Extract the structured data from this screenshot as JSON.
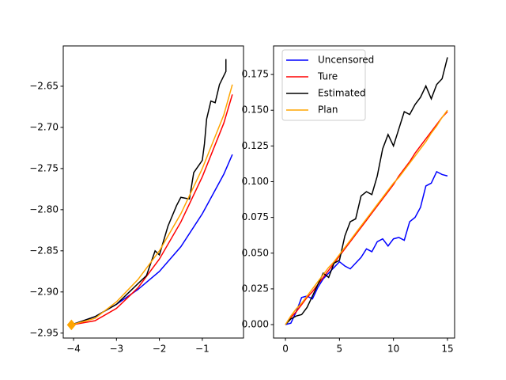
{
  "chart_data": [
    {
      "type": "line",
      "xlim": [
        -4.24,
        -0.04
      ],
      "ylim": [
        -2.956,
        -2.601
      ],
      "xticks": [
        {
          "value": -4,
          "label": "−4"
        },
        {
          "value": -3,
          "label": "−3"
        },
        {
          "value": -2,
          "label": "−2"
        },
        {
          "value": -1,
          "label": "−1"
        }
      ],
      "yticks": [
        {
          "value": -2.95,
          "label": "−2.95"
        },
        {
          "value": -2.9,
          "label": "−2.90"
        },
        {
          "value": -2.85,
          "label": "−2.85"
        },
        {
          "value": -2.8,
          "label": "−2.80"
        },
        {
          "value": -2.75,
          "label": "−2.75"
        },
        {
          "value": -2.7,
          "label": "−2.70"
        },
        {
          "value": -2.65,
          "label": "−2.65"
        }
      ],
      "series": [
        {
          "color": "blue",
          "x": [
            -4.05,
            -3.5,
            -3,
            -2.5,
            -2,
            -1.5,
            -1,
            -0.5,
            -0.3
          ],
          "values": [
            -2.94,
            -2.93,
            -2.915,
            -2.897,
            -2.875,
            -2.845,
            -2.805,
            -2.757,
            -2.733
          ]
        },
        {
          "color": "red",
          "x": [
            -4.05,
            -3.5,
            -3,
            -2.5,
            -2,
            -1.5,
            -1,
            -0.5,
            -0.3
          ],
          "values": [
            -2.94,
            -2.935,
            -2.92,
            -2.895,
            -2.86,
            -2.815,
            -2.76,
            -2.695,
            -2.66
          ]
        },
        {
          "color": "black",
          "x": [
            -4.05,
            -3.5,
            -3,
            -2.6,
            -2.3,
            -2.2,
            -2.1,
            -2.0,
            -1.8,
            -1.6,
            -1.5,
            -1.3,
            -1.2,
            -1.0,
            -0.95,
            -0.9,
            -0.8,
            -0.7,
            -0.6,
            -0.45,
            -0.45
          ],
          "values": [
            -2.94,
            -2.93,
            -2.915,
            -2.895,
            -2.88,
            -2.865,
            -2.85,
            -2.855,
            -2.82,
            -2.795,
            -2.785,
            -2.787,
            -2.755,
            -2.74,
            -2.72,
            -2.69,
            -2.668,
            -2.67,
            -2.648,
            -2.632,
            -2.617
          ]
        },
        {
          "color": "orange",
          "x": [
            -4.05,
            -3.5,
            -3,
            -2.5,
            -2,
            -1.5,
            -1,
            -0.5,
            -0.3
          ],
          "values": [
            -2.94,
            -2.932,
            -2.912,
            -2.885,
            -2.85,
            -2.805,
            -2.75,
            -2.685,
            -2.648
          ]
        }
      ],
      "marker": {
        "x": -4.05,
        "y": -2.94,
        "color": "orange"
      }
    },
    {
      "type": "line",
      "xlim": [
        -1.1,
        15.66
      ],
      "ylim": [
        -0.0094,
        0.195
      ],
      "xticks": [
        0,
        5,
        10,
        15
      ],
      "yticks": [
        {
          "value": 0,
          "label": "0.000"
        },
        0.025,
        {
          "value": 0.05,
          "label": "0.050"
        },
        0.075,
        {
          "value": 0.1,
          "label": "0.100"
        },
        0.125,
        {
          "value": 0.15,
          "label": "0.150"
        },
        0.175
      ],
      "legend": "upper left",
      "series": [
        {
          "name": "Uncensored",
          "color": "blue",
          "x": [
            0,
            0.5,
            1,
            1.5,
            2,
            2.5,
            3,
            3.5,
            4,
            4.5,
            5,
            5.5,
            6,
            6.5,
            7,
            7.5,
            8,
            8.5,
            9,
            9.5,
            10,
            10.5,
            11,
            11.5,
            12,
            12.5,
            13,
            13.5,
            14,
            14.5,
            15
          ],
          "values": [
            0,
            0.001,
            0.009,
            0.019,
            0.02,
            0.018,
            0.026,
            0.032,
            0.036,
            0.04,
            0.044,
            0.041,
            0.039,
            0.043,
            0.047,
            0.053,
            0.051,
            0.058,
            0.06,
            0.055,
            0.06,
            0.061,
            0.059,
            0.072,
            0.075,
            0.082,
            0.097,
            0.099,
            0.107,
            0.105,
            0.104
          ]
        },
        {
          "name": "Ture",
          "color": "red",
          "x": [
            0,
            0.5,
            1,
            1.5,
            2,
            2.5,
            3,
            3.5,
            4,
            4.5,
            5,
            5.5,
            6,
            6.5,
            7,
            7.5,
            8,
            8.5,
            9,
            9.5,
            10,
            10.5,
            11,
            11.5,
            12,
            12.5,
            13,
            13.5,
            14,
            14.5,
            15
          ],
          "values": [
            0,
            0.005,
            0.009,
            0.014,
            0.019,
            0.023,
            0.028,
            0.033,
            0.038,
            0.043,
            0.048,
            0.053,
            0.058,
            0.063,
            0.068,
            0.073,
            0.078,
            0.083,
            0.088,
            0.093,
            0.098,
            0.104,
            0.109,
            0.114,
            0.12,
            0.125,
            0.13,
            0.135,
            0.14,
            0.145,
            0.149
          ]
        },
        {
          "name": "Estimated",
          "color": "black",
          "x": [
            0,
            0.5,
            1,
            1.5,
            2,
            2.5,
            3,
            3.5,
            4,
            4.5,
            5,
            5.5,
            6,
            6.5,
            7,
            7.5,
            8,
            8.5,
            9,
            9.5,
            10,
            10.5,
            11,
            11.5,
            12,
            12.5,
            13,
            13.5,
            14,
            14.5,
            15
          ],
          "values": [
            0,
            0.004,
            0.006,
            0.007,
            0.012,
            0.02,
            0.028,
            0.036,
            0.033,
            0.043,
            0.045,
            0.062,
            0.072,
            0.074,
            0.09,
            0.093,
            0.091,
            0.104,
            0.123,
            0.133,
            0.125,
            0.137,
            0.149,
            0.147,
            0.154,
            0.159,
            0.167,
            0.158,
            0.168,
            0.172,
            0.187
          ]
        },
        {
          "name": "Plan",
          "color": "orange",
          "x": [
            0,
            0.5,
            1,
            1.5,
            2,
            2.5,
            3,
            3.5,
            4,
            4.5,
            5,
            5.5,
            6,
            6.5,
            7,
            7.5,
            8,
            8.5,
            9,
            9.5,
            10,
            10.5,
            11,
            11.5,
            12,
            12.5,
            13,
            13.5,
            14,
            14.5,
            15
          ],
          "values": [
            0,
            0.006,
            0.011,
            0.015,
            0.02,
            0.025,
            0.03,
            0.035,
            0.04,
            0.044,
            0.049,
            0.054,
            0.059,
            0.064,
            0.069,
            0.074,
            0.079,
            0.084,
            0.089,
            0.094,
            0.099,
            0.103,
            0.108,
            0.113,
            0.118,
            0.123,
            0.128,
            0.134,
            0.139,
            0.145,
            0.15
          ]
        }
      ]
    }
  ]
}
